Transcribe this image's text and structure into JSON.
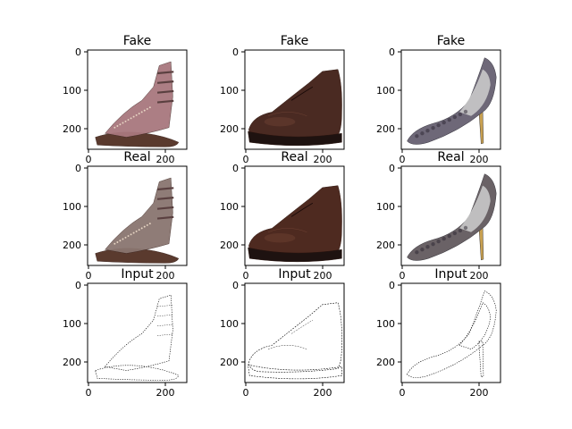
{
  "figure": {
    "panels": [
      {
        "row": 0,
        "col": 0,
        "title": "Fake",
        "subject": "gladiator-sandal-icon",
        "style": "fake"
      },
      {
        "row": 0,
        "col": 1,
        "title": "Fake",
        "subject": "oxford-shoe-icon",
        "style": "fake"
      },
      {
        "row": 0,
        "col": 2,
        "title": "Fake",
        "subject": "high-heel-pump-icon",
        "style": "fake"
      },
      {
        "row": 1,
        "col": 0,
        "title": "Real",
        "subject": "gladiator-sandal-icon",
        "style": "real"
      },
      {
        "row": 1,
        "col": 1,
        "title": "Real",
        "subject": "oxford-shoe-icon",
        "style": "real"
      },
      {
        "row": 1,
        "col": 2,
        "title": "Real",
        "subject": "high-heel-pump-icon",
        "style": "real"
      },
      {
        "row": 2,
        "col": 0,
        "title": "Input",
        "subject": "gladiator-sandal-icon",
        "style": "edges"
      },
      {
        "row": 2,
        "col": 1,
        "title": "Input",
        "subject": "oxford-shoe-icon",
        "style": "edges"
      },
      {
        "row": 2,
        "col": 2,
        "title": "Input",
        "subject": "high-heel-pump-icon",
        "style": "edges"
      }
    ],
    "y_ticks": [
      "0",
      "100",
      "200"
    ],
    "x_ticks": [
      "0",
      "200"
    ],
    "colors": {
      "sandal_fake": "#a8787e",
      "sandal_real": "#8a7670",
      "sandal_sole": "#5a3a2e",
      "oxford_fake": "#4a2a22",
      "oxford_real": "#4e2a20",
      "oxford_sole": "#1e1210",
      "heel_fake": "#6e6878",
      "heel_real": "#6a6266",
      "heel_inner": "#c9c9c9",
      "heel_gold": "#c8a050",
      "edge_stroke": "#000000"
    }
  }
}
